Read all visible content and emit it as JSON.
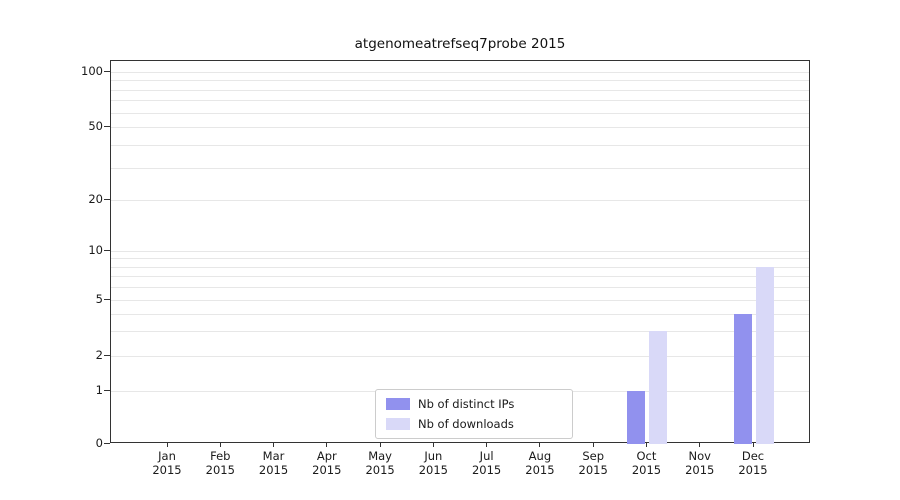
{
  "chart_data": {
    "type": "bar",
    "title": "atgenomeatrefseq7probe 2015",
    "year_label": "2015",
    "categories": [
      "Jan",
      "Feb",
      "Mar",
      "Apr",
      "May",
      "Jun",
      "Jul",
      "Aug",
      "Sep",
      "Oct",
      "Nov",
      "Dec"
    ],
    "series": [
      {
        "name": "Nb of distinct IPs",
        "color": "#9191ee",
        "values": [
          0,
          0,
          0,
          0,
          0,
          0,
          0,
          0,
          0,
          1,
          0,
          4
        ]
      },
      {
        "name": "Nb of downloads",
        "color": "#d9d9f8",
        "values": [
          0,
          0,
          0,
          0,
          0,
          0,
          0,
          0,
          0,
          3,
          0,
          8
        ]
      }
    ],
    "yticks": [
      0,
      1,
      2,
      5,
      10,
      20,
      50,
      100
    ],
    "yscale": "log-like",
    "ylim": [
      0,
      100
    ],
    "grid": "horizontal",
    "grid_color": "#e7e7e7",
    "axis_color": "#333333",
    "legend_position": "lower center"
  }
}
